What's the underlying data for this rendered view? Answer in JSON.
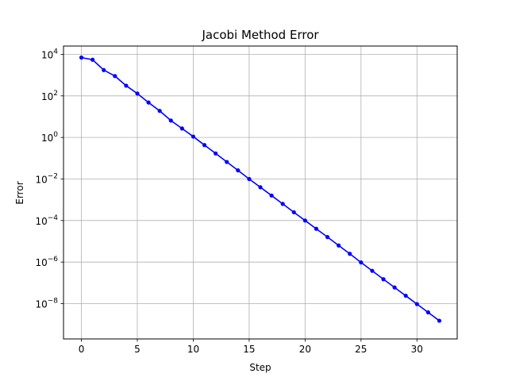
{
  "chart_data": {
    "type": "line",
    "title": "Jacobi Method Error",
    "xlabel": "Step",
    "ylabel": "Error",
    "xlim": [
      -1.6,
      33.6
    ],
    "ylim_log10": [
      -9.7,
      4.4
    ],
    "y_scale": "log",
    "grid": true,
    "x_ticks": [
      0,
      5,
      10,
      15,
      20,
      25,
      30
    ],
    "y_tick_exponents": [
      4,
      2,
      0,
      -2,
      -4,
      -6,
      -8
    ],
    "y_tick_base": "10",
    "series": [
      {
        "color": "#0000ff",
        "marker": "circle",
        "x": [
          0,
          1,
          2,
          3,
          4,
          5,
          6,
          7,
          8,
          9,
          10,
          11,
          12,
          13,
          14,
          15,
          16,
          17,
          18,
          19,
          20,
          21,
          22,
          23,
          24,
          25,
          26,
          27,
          28,
          29,
          30,
          31,
          32
        ],
        "y": [
          7000,
          5500,
          1750,
          900,
          310,
          130,
          48,
          19,
          6.5,
          2.7,
          1.1,
          0.43,
          0.17,
          0.066,
          0.026,
          0.01,
          0.004,
          0.0016,
          0.00063,
          0.00025,
          0.0001,
          4e-05,
          1.6e-05,
          6.3e-06,
          2.5e-06,
          9.6e-07,
          3.8e-07,
          1.5e-07,
          6e-08,
          2.4e-08,
          9.5e-09,
          3.8e-09,
          1.5e-09
        ]
      }
    ]
  }
}
